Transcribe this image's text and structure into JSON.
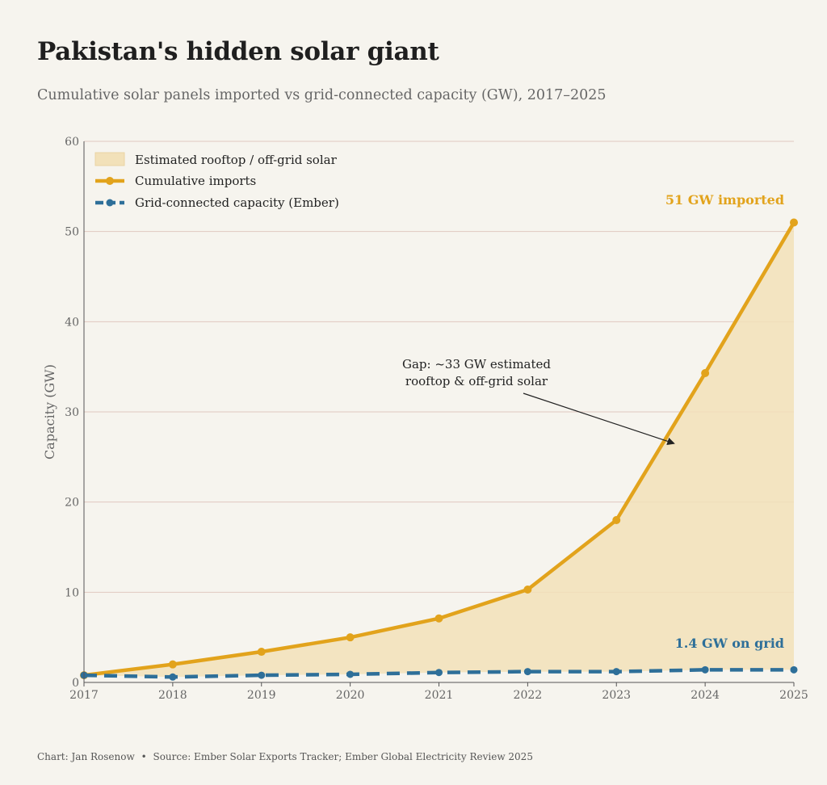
{
  "title": "Pakistan's hidden solar giant",
  "subtitle": "Cumulative solar panels imported vs grid-connected capacity (GW), 2017–2025",
  "footer": {
    "credit": "Chart: Jan Rosenow",
    "separator": "•",
    "source": "Source: Ember Solar Exports Tracker; Ember Global Electricity Review 2025"
  },
  "colors": {
    "imports": "#e2a31c",
    "grid": "#2e6f99",
    "fill": "#f2e1b9",
    "gridline": "#e0c8c0"
  },
  "chart_data": {
    "type": "line",
    "x": [
      2017,
      2018,
      2019,
      2020,
      2021,
      2022,
      2023,
      2024,
      2025
    ],
    "xlim": [
      2017,
      2025
    ],
    "ylim": [
      0,
      60
    ],
    "y_ticks": [
      0,
      10,
      20,
      30,
      40,
      50,
      60
    ],
    "ylabel": "Capacity (GW)",
    "xlabel": "",
    "grid": true,
    "legend_position": "top-left",
    "series": [
      {
        "name": "Cumulative imports",
        "values": [
          0.8,
          2.0,
          3.4,
          5.0,
          7.1,
          10.3,
          18.0,
          34.3,
          51.0
        ],
        "style": "solid-markers"
      },
      {
        "name": "Grid-connected capacity (Ember)",
        "values": [
          0.8,
          0.6,
          0.8,
          0.9,
          1.1,
          1.2,
          1.2,
          1.4,
          1.4
        ],
        "style": "dashed-markers"
      }
    ],
    "area": {
      "name": "Estimated rooftop / off-grid solar",
      "between": [
        "Grid-connected capacity (Ember)",
        "Cumulative imports"
      ]
    },
    "annotations": [
      {
        "text_lines": [
          "Gap: ~33 GW estimated",
          "rooftop & off-grid solar"
        ],
        "arrow_to": {
          "x": 2023.65,
          "y": 26.5
        }
      }
    ],
    "end_labels": [
      {
        "text": "51 GW imported",
        "series": "Cumulative imports"
      },
      {
        "text": "1.4 GW on grid",
        "series": "Grid-connected capacity (Ember)"
      }
    ]
  }
}
